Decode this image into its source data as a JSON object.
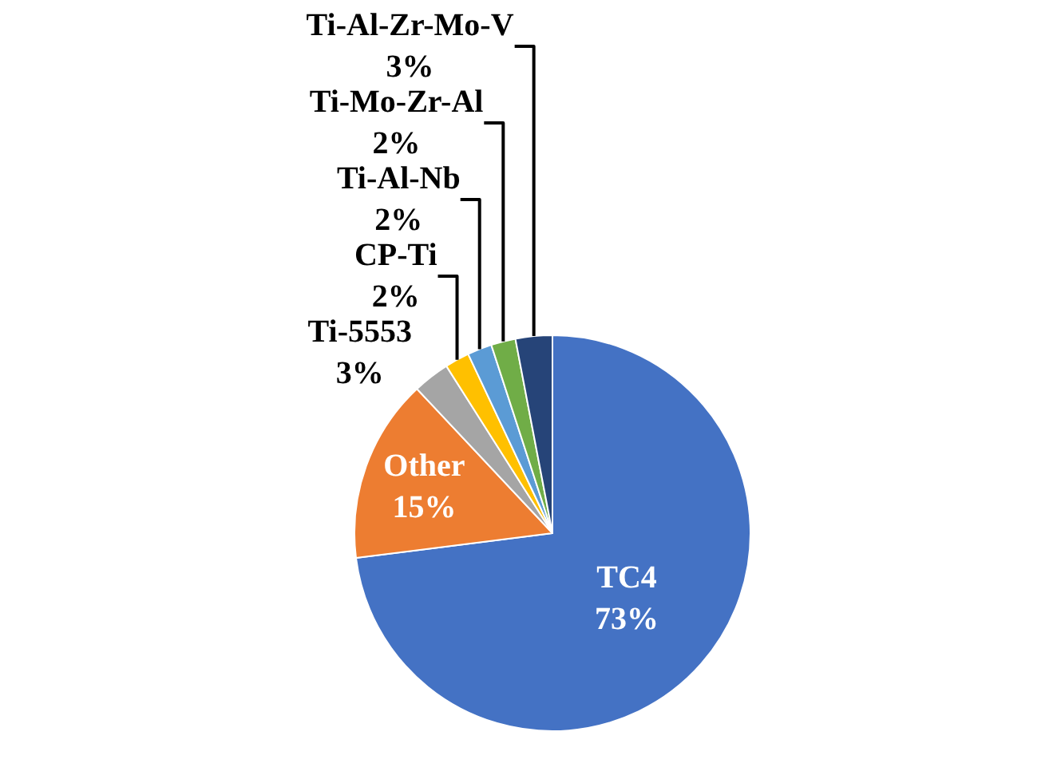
{
  "chart_data": {
    "type": "pie",
    "categories": [
      "TC4",
      "Other",
      "Ti-5553",
      "CP-Ti",
      "Ti-Al-Nb",
      "Ti-Mo-Zr-Al",
      "Ti-Al-Zr-Mo-V"
    ],
    "values": [
      73,
      15,
      3,
      2,
      2,
      2,
      3
    ],
    "value_labels": [
      "73%",
      "15%",
      "3%",
      "2%",
      "2%",
      "2%",
      "3%"
    ],
    "colors": [
      "#4472c4",
      "#ed7d31",
      "#a5a5a5",
      "#ffc000",
      "#5b9bd5",
      "#70ad47",
      "#264478"
    ],
    "legend": false
  }
}
